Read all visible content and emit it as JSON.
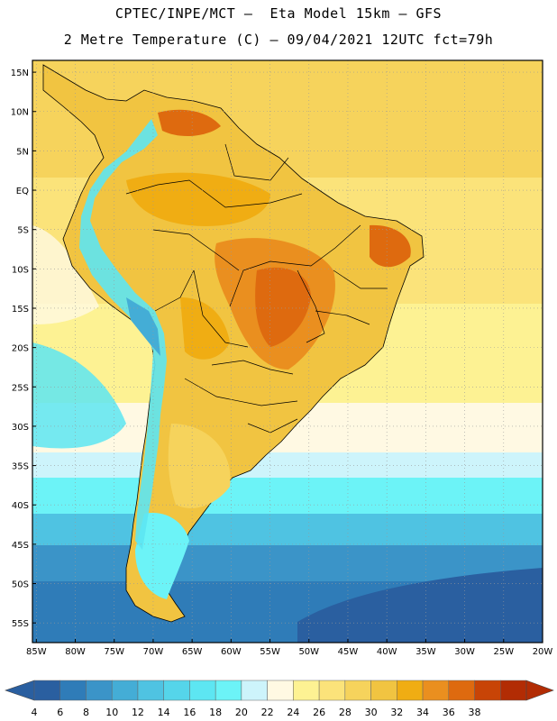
{
  "header": {
    "line1": "CPTEC/INPE/MCT –  Eta Model 15km – GFS",
    "line2": "2 Metre Temperature (C) – 09/04/2021 12UTC fct=79h"
  },
  "map": {
    "lat_labels": [
      "15N",
      "10N",
      "5N",
      "EQ",
      "5S",
      "10S",
      "15S",
      "20S",
      "25S",
      "30S",
      "35S",
      "40S",
      "45S",
      "50S",
      "55S"
    ],
    "lon_labels": [
      "85W",
      "80W",
      "75W",
      "70W",
      "65W",
      "60W",
      "55W",
      "50W",
      "45W",
      "40W",
      "35W",
      "30W",
      "25W",
      "20W"
    ],
    "lat_values": [
      15,
      10,
      5,
      0,
      -5,
      -10,
      -15,
      -20,
      -25,
      -30,
      -35,
      -40,
      -45,
      -50,
      -55
    ],
    "lon_values": [
      -85,
      -80,
      -75,
      -70,
      -65,
      -60,
      -55,
      -50,
      -45,
      -40,
      -35,
      -30,
      -25,
      -20
    ],
    "extent": {
      "west": -85.5,
      "east": -20,
      "north": 16.5,
      "south": -57.5
    }
  },
  "colorbar": {
    "labels": [
      "4",
      "6",
      "8",
      "10",
      "12",
      "14",
      "16",
      "18",
      "20",
      "22",
      "24",
      "26",
      "28",
      "30",
      "32",
      "34",
      "36",
      "38"
    ],
    "colors": [
      "#2a5fa0",
      "#2f7cb8",
      "#3b94c8",
      "#44add6",
      "#4fc3e2",
      "#55d5ea",
      "#5de6f2",
      "#6cf3f7",
      "#cdf4fb",
      "#fff9e3",
      "#fdf293",
      "#fbe37a",
      "#f6d35c",
      "#f1c441",
      "#f0ad13",
      "#ea8f1f",
      "#de6a0f",
      "#c84406",
      "#b22c04"
    ],
    "left_arrow_color": "#2a5fa0",
    "right_arrow_color": "#b22c04"
  }
}
